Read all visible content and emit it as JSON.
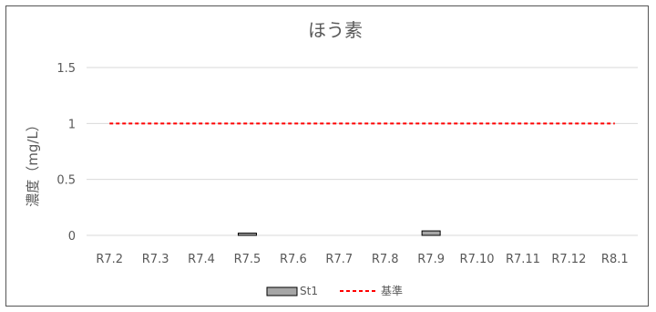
{
  "chart_data": {
    "type": "bar",
    "title": "ほう素",
    "xlabel": "",
    "ylabel": "濃度（mg/L）",
    "categories": [
      "R7.2",
      "R7.3",
      "R7.4",
      "R7.5",
      "R7.6",
      "R7.7",
      "R7.8",
      "R7.9",
      "R7.10",
      "R7.11",
      "R7.12",
      "R8.1"
    ],
    "series": [
      {
        "name": "St1",
        "type": "bar",
        "values": [
          null,
          null,
          null,
          0.02,
          null,
          null,
          null,
          0.04,
          null,
          null,
          null,
          null
        ],
        "color": "#a6a6a6"
      },
      {
        "name": "基準",
        "type": "line",
        "style": "dashed",
        "values": [
          1,
          1,
          1,
          1,
          1,
          1,
          1,
          1,
          1,
          1,
          1,
          1
        ],
        "color": "#ff0000"
      }
    ],
    "ylim": [
      0,
      1.5
    ],
    "yticks": [
      0,
      0.5,
      1,
      1.5
    ],
    "ytick_labels": [
      "0",
      "0.5",
      "1",
      "1.5"
    ],
    "grid": true,
    "legend_position": "bottom"
  }
}
